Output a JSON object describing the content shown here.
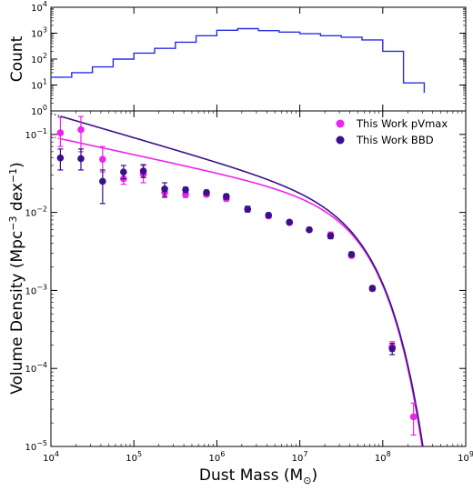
{
  "chart_data": [
    {
      "type": "step",
      "ylabel": "Count",
      "yscale": "log",
      "ylim": [
        1,
        10000
      ],
      "xlim": [
        10000,
        1000000000
      ],
      "y_ticks": [
        {
          "base": "10",
          "exp": "0"
        },
        {
          "base": "10",
          "exp": "1"
        },
        {
          "base": "10",
          "exp": "2"
        },
        {
          "base": "10",
          "exp": "3"
        },
        {
          "base": "10",
          "exp": "4"
        }
      ],
      "color": "#2a2ee0",
      "steps": {
        "x_edges_log10": [
          4.0,
          4.25,
          4.5,
          4.75,
          5.0,
          5.25,
          5.5,
          5.75,
          6.0,
          6.25,
          6.5,
          6.75,
          7.0,
          7.25,
          7.5,
          7.75,
          8.0,
          8.25,
          8.5
        ],
        "counts": [
          20,
          30,
          50,
          100,
          170,
          260,
          450,
          800,
          1300,
          1500,
          1250,
          1100,
          950,
          800,
          700,
          550,
          200,
          12,
          5
        ]
      }
    },
    {
      "type": "scatter+line",
      "xlabel": "Dust Mass (M",
      "xlabel_sub": "⊙",
      "xlabel_end": ")",
      "ylabel": "Volume Density (Mpc",
      "ylabel_sup": "−3",
      "ylabel_mid": " dex",
      "ylabel_sup2": "−1",
      "ylabel_end": ")",
      "xscale": "log",
      "yscale": "log",
      "xlim": [
        10000,
        1000000000
      ],
      "ylim": [
        1e-05,
        0.2
      ],
      "x_ticks": [
        {
          "base": "10",
          "exp": "4"
        },
        {
          "base": "10",
          "exp": "5"
        },
        {
          "base": "10",
          "exp": "6"
        },
        {
          "base": "10",
          "exp": "7"
        },
        {
          "base": "10",
          "exp": "8"
        },
        {
          "base": "10",
          "exp": "9"
        }
      ],
      "y_ticks": [
        {
          "base": "10",
          "exp": "−5"
        },
        {
          "base": "10",
          "exp": "−4"
        },
        {
          "base": "10",
          "exp": "−3"
        },
        {
          "base": "10",
          "exp": "−2"
        },
        {
          "base": "10",
          "exp": "−1"
        }
      ],
      "legend_position": "top-right",
      "series": [
        {
          "name": "This Work pVmax",
          "color": "#ee22ee",
          "x": [
            13000,
            23000,
            42000,
            75000,
            130000,
            235000,
            420000,
            750000,
            1300000,
            2350000,
            4200000,
            7500000,
            13000000,
            23500000,
            42000000,
            75000000,
            130000000,
            235000000
          ],
          "y": [
            0.105,
            0.115,
            0.048,
            0.027,
            0.031,
            0.018,
            0.017,
            0.017,
            0.015,
            0.011,
            0.009,
            0.0074,
            0.006,
            0.0051,
            0.0028,
            0.00105,
            0.00019,
            2.4e-05
          ],
          "err_lo": [
            0.07,
            0.06,
            0.033,
            0.023,
            0.024,
            0.0155,
            0.0155,
            0.016,
            0.014,
            0.0103,
            0.0085,
            0.007,
            0.0057,
            0.0047,
            0.0026,
            0.00098,
            0.000165,
            1.4e-05
          ],
          "err_hi": [
            0.165,
            0.17,
            0.07,
            0.032,
            0.04,
            0.021,
            0.019,
            0.0185,
            0.0165,
            0.0118,
            0.0095,
            0.0078,
            0.0064,
            0.0056,
            0.003,
            0.00112,
            0.00022,
            3.6e-05
          ],
          "fit": {
            "phi_star": 0.0059,
            "m_star": 44000000,
            "alpha": -1.23
          }
        },
        {
          "name": "This Work BBD",
          "color": "#3b108a",
          "x": [
            13000,
            23000,
            42000,
            75000,
            130000,
            235000,
            420000,
            750000,
            1300000,
            2350000,
            4200000,
            7500000,
            13000000,
            23500000,
            42000000,
            75000000,
            130000000
          ],
          "y": [
            0.05,
            0.049,
            0.025,
            0.033,
            0.034,
            0.02,
            0.0195,
            0.018,
            0.016,
            0.011,
            0.0092,
            0.0075,
            0.006,
            0.005,
            0.0029,
            0.00107,
            0.00018
          ],
          "err_lo": [
            0.035,
            0.035,
            0.013,
            0.027,
            0.028,
            0.016,
            0.018,
            0.0168,
            0.0148,
            0.0101,
            0.0086,
            0.0071,
            0.0057,
            0.0046,
            0.0027,
            0.001,
            0.00015
          ],
          "err_hi": [
            0.065,
            0.065,
            0.035,
            0.04,
            0.041,
            0.024,
            0.021,
            0.0192,
            0.0172,
            0.012,
            0.0098,
            0.0079,
            0.0063,
            0.0054,
            0.0031,
            0.00114,
            0.00021
          ],
          "fit": {
            "phi_star": 0.0059,
            "m_star": 46000000,
            "alpha": -1.31
          }
        }
      ]
    }
  ]
}
